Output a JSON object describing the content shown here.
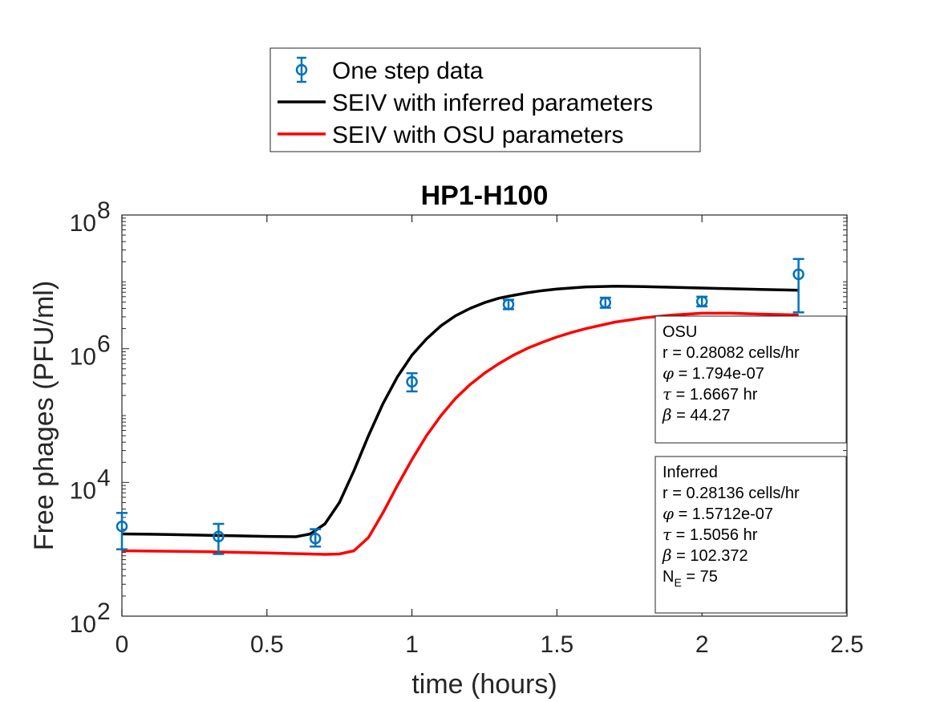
{
  "chart_data": {
    "type": "line",
    "title": "HP1-H100",
    "xlabel": "time (hours)",
    "ylabel": "Free phages (PFU/ml)",
    "xlim": [
      0,
      2.5
    ],
    "ylim": [
      100,
      100000000
    ],
    "yscale": "log",
    "grid": false,
    "legend_position": "top-outside",
    "x_ticks": [
      "0",
      "0.5",
      "1",
      "1.5",
      "2",
      "2.5"
    ],
    "y_ticks": [
      {
        "base": "10",
        "exp": "2"
      },
      {
        "base": "10",
        "exp": "4"
      },
      {
        "base": "10",
        "exp": "6"
      },
      {
        "base": "10",
        "exp": "8"
      }
    ],
    "legend": [
      {
        "label": "One step data",
        "color": "#0072BD",
        "style": "errorbar-marker"
      },
      {
        "label": "SEIV with inferred parameters",
        "color": "#000000",
        "style": "line"
      },
      {
        "label": "SEIV with OSU parameters",
        "color": "#FF0000",
        "style": "line"
      }
    ],
    "series": [
      {
        "name": "One step data",
        "color": "#0072BD",
        "points": [
          {
            "x": 0,
            "y": 2200,
            "ylow": 1000,
            "yhigh": 3500
          },
          {
            "x": 0.333,
            "y": 1550,
            "ylow": 850,
            "yhigh": 2400
          },
          {
            "x": 0.667,
            "y": 1450,
            "ylow": 1100,
            "yhigh": 2000
          },
          {
            "x": 1.0,
            "y": 320000,
            "ylow": 230000,
            "yhigh": 430000
          },
          {
            "x": 1.333,
            "y": 4600000,
            "ylow": 3900000,
            "yhigh": 5400000
          },
          {
            "x": 1.667,
            "y": 4900000,
            "ylow": 4100000,
            "yhigh": 5800000
          },
          {
            "x": 2.0,
            "y": 5100000,
            "ylow": 4300000,
            "yhigh": 6000000
          },
          {
            "x": 2.333,
            "y": 13000000,
            "ylow": 3500000,
            "yhigh": 22000000
          }
        ]
      },
      {
        "name": "SEIV with inferred parameters",
        "color": "#000000",
        "x": [
          0,
          0.1,
          0.2,
          0.3,
          0.4,
          0.5,
          0.6,
          0.65,
          0.7,
          0.75,
          0.8,
          0.85,
          0.9,
          0.95,
          1.0,
          1.05,
          1.1,
          1.15,
          1.2,
          1.25,
          1.3,
          1.35,
          1.4,
          1.45,
          1.5,
          1.6,
          1.7,
          1.8,
          1.9,
          2.0,
          2.1,
          2.2,
          2.333
        ],
        "y": [
          1700,
          1680,
          1650,
          1620,
          1590,
          1560,
          1540,
          1700,
          2400,
          5000,
          15000,
          50000,
          150000,
          380000,
          800000,
          1400000,
          2200000,
          3100000,
          4000000,
          4900000,
          5700000,
          6300000,
          6900000,
          7400000,
          7800000,
          8400000,
          8600000,
          8500000,
          8300000,
          8100000,
          7900000,
          7700000,
          7500000
        ]
      },
      {
        "name": "SEIV with OSU parameters",
        "color": "#FF0000",
        "x": [
          0,
          0.1,
          0.2,
          0.3,
          0.4,
          0.5,
          0.6,
          0.7,
          0.75,
          0.8,
          0.85,
          0.9,
          0.95,
          1.0,
          1.05,
          1.1,
          1.15,
          1.2,
          1.25,
          1.3,
          1.35,
          1.4,
          1.45,
          1.5,
          1.55,
          1.6,
          1.7,
          1.8,
          1.9,
          2.0,
          2.1,
          2.2,
          2.333
        ],
        "y": [
          950,
          940,
          930,
          920,
          900,
          880,
          860,
          840,
          850,
          950,
          1500,
          3500,
          9000,
          22000,
          50000,
          100000,
          180000,
          290000,
          430000,
          600000,
          800000,
          1020000,
          1250000,
          1500000,
          1750000,
          2000000,
          2500000,
          2900000,
          3200000,
          3400000,
          3400000,
          3300000,
          3200000
        ]
      }
    ],
    "annotations": [
      {
        "name": "osu-params",
        "lines": [
          {
            "text": "OSU"
          },
          {
            "text": "r = 0.28082 cells/hr"
          },
          {
            "sym": "φ",
            "text": " = 1.794e-07"
          },
          {
            "sym": "τ",
            "text": " = 1.6667 hr"
          },
          {
            "sym": "β",
            "text": " = 44.27"
          }
        ]
      },
      {
        "name": "inferred-params",
        "lines": [
          {
            "text": "Inferred"
          },
          {
            "text": "r = 0.28136 cells/hr"
          },
          {
            "sym": "φ",
            "text": " = 1.5712e-07"
          },
          {
            "sym": "τ",
            "text": " = 1.5056 hr"
          },
          {
            "sym": "β",
            "text": " = 102.372"
          },
          {
            "text": "N",
            "sub": "E",
            "text2": " = 75"
          }
        ]
      }
    ]
  }
}
